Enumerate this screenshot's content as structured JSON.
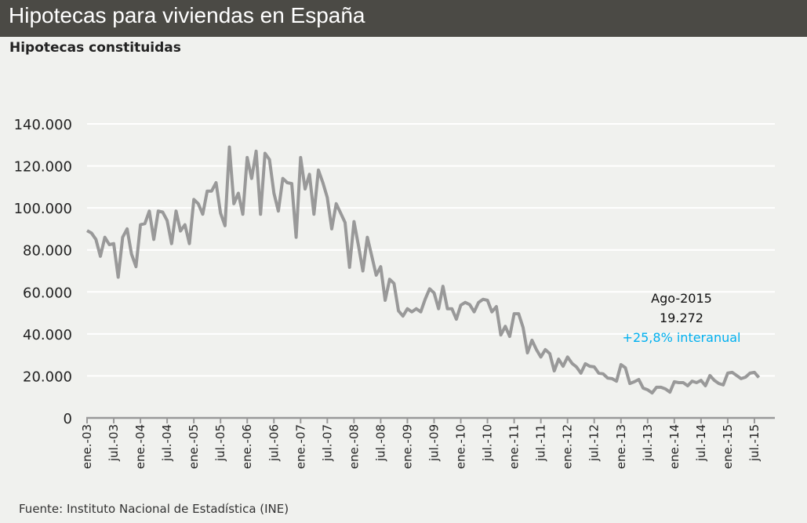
{
  "header": {
    "title": "Hipotecas para viviendas en España"
  },
  "subtitle": "Hipotecas constituidas",
  "source": "Fuente: Instituto Nacional de Estadística (INE)",
  "annotation": {
    "period": "Ago-2015",
    "value": "19.272",
    "change": "+25,8% interanual",
    "change_color": "#00b0f0"
  },
  "chart_data": {
    "type": "line",
    "title": "Hipotecas constituidas",
    "xlabel": "",
    "ylabel": "",
    "ylim": [
      0,
      140000
    ],
    "y_ticks": [
      0,
      20000,
      40000,
      60000,
      80000,
      100000,
      120000,
      140000
    ],
    "y_tick_labels": [
      "0",
      "20.000",
      "40.000",
      "60.000",
      "80.000",
      "100.000",
      "120.000",
      "140.000"
    ],
    "x_tick_labels": [
      "ene.-03",
      "jul.-03",
      "ene.-04",
      "jul.-04",
      "ene.-05",
      "jul.-05",
      "ene.-06",
      "jul.-06",
      "ene.-07",
      "jul.-07",
      "ene.-08",
      "jul.-08",
      "ene.-09",
      "jul.-09",
      "ene.-10",
      "jul.-10",
      "ene.-11",
      "jul.-11",
      "ene.-12",
      "jul.-12",
      "ene.-13",
      "jul.-13",
      "ene.-14",
      "jul.-14",
      "ene.-15",
      "jul.-15"
    ],
    "x_start": "2003-01",
    "x_end": "2015-08",
    "frequency": "monthly",
    "grid": true,
    "line_color": "#999999",
    "series": [
      {
        "values": [
          89200,
          88000,
          85000,
          77000,
          86000,
          82500,
          83000,
          67000,
          86000,
          90000,
          78000,
          72000,
          92000,
          92500,
          98500,
          85000,
          98500,
          98000,
          94000,
          83000,
          98500,
          89000,
          92000,
          83000,
          104000,
          102000,
          97000,
          108000,
          108000,
          112000,
          97500,
          91500,
          129000,
          102000,
          107000,
          97000,
          124000,
          114000,
          127000,
          97000,
          126000,
          123000,
          107000,
          98500,
          114000,
          112000,
          111600,
          86000,
          124000,
          109000,
          116000,
          97000,
          118000,
          112000,
          105000,
          90000,
          102000,
          97500,
          93000,
          71700,
          93500,
          82000,
          70000,
          86000,
          77000,
          68000,
          72000,
          56000,
          66000,
          64000,
          51000,
          48500,
          52000,
          50500,
          52000,
          50500,
          56500,
          61500,
          59500,
          52000,
          62700,
          52000,
          52000,
          47000,
          53700,
          55000,
          54000,
          50500,
          55000,
          56500,
          56000,
          50500,
          53000,
          39500,
          43600,
          38800,
          49600,
          49600,
          43000,
          31000,
          37000,
          32500,
          29000,
          32500,
          30600,
          22400,
          28000,
          24600,
          29000,
          26000,
          24300,
          21300,
          25800,
          24600,
          24300,
          21300,
          21000,
          19000,
          18700,
          17500,
          25400,
          23900,
          16400,
          17200,
          18300,
          14200,
          13400,
          11900,
          14600,
          14600,
          13800,
          12300,
          17200,
          16800,
          16800,
          15300,
          17500,
          16800,
          17900,
          15300,
          20200,
          17900,
          16400,
          15700,
          21300,
          21700,
          20200,
          18700,
          19400,
          21300,
          21700,
          19272
        ]
      }
    ]
  }
}
